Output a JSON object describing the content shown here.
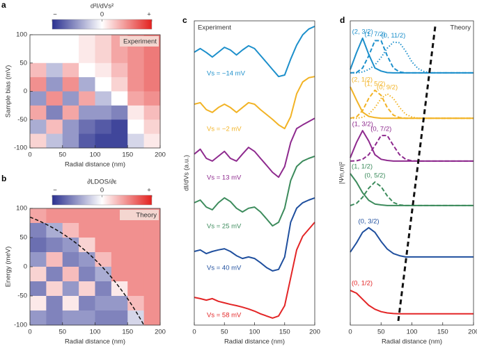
{
  "chart_data": [
    {
      "type": "heatmap",
      "panel": "a",
      "title": "d²I/dVs²",
      "annotation": "Experiment",
      "xlabel": "Radial distance (nm)",
      "ylabel": "Sample bias (mV)",
      "xlim": [
        0,
        200
      ],
      "ylim": [
        -100,
        100
      ],
      "xticks": [
        0,
        50,
        100,
        150,
        200
      ],
      "yticks": [
        -100,
        -50,
        0,
        50,
        100
      ],
      "colorscale": [
        "#2b3190",
        "#ffffff",
        "#e3211f"
      ],
      "zlim": [
        -1,
        1
      ],
      "zticks": [
        {
          "value": -1,
          "label": "−"
        },
        {
          "value": 0,
          "label": "0"
        },
        {
          "value": 1,
          "label": "+"
        }
      ],
      "x": [
        12.5,
        37.5,
        62.5,
        87.5,
        112.5,
        137.5,
        162.5,
        187.5
      ],
      "y": [
        87.5,
        62.5,
        37.5,
        12.5,
        -12.5,
        -37.5,
        -62.5,
        -87.5
      ],
      "z": [
        [
          0,
          0,
          0,
          0.1,
          0.2,
          0.4,
          0.5,
          0.6
        ],
        [
          0,
          0,
          0,
          0.1,
          0.2,
          0.4,
          0.5,
          0.6
        ],
        [
          0.3,
          -0.3,
          0.3,
          0,
          0.1,
          0.3,
          0.5,
          0.6
        ],
        [
          0.5,
          -0.5,
          0.5,
          -0.4,
          0,
          0.2,
          0.5,
          0.6
        ],
        [
          -0.5,
          0.5,
          -0.5,
          0.4,
          -0.3,
          0,
          0.4,
          0.5
        ],
        [
          0.4,
          -0.6,
          0.4,
          -0.5,
          -0.5,
          -0.6,
          0.1,
          0.3
        ],
        [
          -0.4,
          0.3,
          -0.5,
          -0.7,
          -0.8,
          -0.9,
          0,
          0.2
        ],
        [
          0.2,
          -0.3,
          -0.5,
          -0.8,
          -0.9,
          -0.9,
          -0.2,
          0.1
        ]
      ]
    },
    {
      "type": "heatmap",
      "panel": "b",
      "title": "∂LDOS/∂ε",
      "annotation": "Theory",
      "xlabel": "Radial distance (nm)",
      "ylabel": "Energy (meV)",
      "xlim": [
        0,
        200
      ],
      "ylim": [
        -100,
        100
      ],
      "xticks": [
        0,
        50,
        100,
        150,
        200
      ],
      "yticks": [
        -100,
        -50,
        0,
        50,
        100
      ],
      "colorscale": [
        "#2b3190",
        "#ffffff",
        "#e3211f"
      ],
      "zlim": [
        -1,
        1
      ],
      "zticks": [
        {
          "value": -1,
          "label": "−"
        },
        {
          "value": 0,
          "label": "0"
        },
        {
          "value": 1,
          "label": "+"
        }
      ],
      "x": [
        12.5,
        37.5,
        62.5,
        87.5,
        112.5,
        137.5,
        162.5,
        187.5
      ],
      "y": [
        87.5,
        62.5,
        37.5,
        12.5,
        -12.5,
        -37.5,
        -62.5,
        -87.5
      ],
      "z": [
        [
          0.4,
          0.5,
          0.5,
          0.5,
          0.5,
          0.5,
          0.5,
          0.5
        ],
        [
          -0.6,
          -0.4,
          0.3,
          0.5,
          0.5,
          0.5,
          0.5,
          0.5
        ],
        [
          -0.7,
          -0.6,
          -0.5,
          0.2,
          0.5,
          0.5,
          0.5,
          0.5
        ],
        [
          -0.5,
          0.3,
          -0.6,
          -0.5,
          0.3,
          0.5,
          0.5,
          0.5
        ],
        [
          0.2,
          -0.6,
          0.3,
          -0.6,
          -0.4,
          0.5,
          0.5,
          0.5
        ],
        [
          -0.6,
          0.2,
          -0.5,
          0.2,
          -0.6,
          0.1,
          0.5,
          0.5
        ],
        [
          0.1,
          -0.6,
          0.1,
          -0.6,
          -0.5,
          -0.5,
          0.3,
          0.5
        ],
        [
          -0.5,
          -0.6,
          -0.5,
          -0.5,
          -0.6,
          -0.6,
          -0.2,
          0.5
        ]
      ]
    },
    {
      "type": "line",
      "panel": "c",
      "annotation": "Experiment",
      "xlabel": "Radial distance (nm)",
      "ylabel": "dI/dVs (a.u.)",
      "xlim": [
        0,
        200
      ],
      "ylim": [
        0,
        100
      ],
      "xticks": [
        0,
        50,
        100,
        150,
        200
      ],
      "x": [
        0,
        10,
        20,
        30,
        40,
        50,
        60,
        70,
        80,
        90,
        100,
        110,
        120,
        130,
        140,
        150,
        160,
        170,
        180,
        190,
        200
      ],
      "series": [
        {
          "name": "Vs = −14 mV",
          "color": "#1c8fcb",
          "dash": "solid",
          "values": [
            89.7,
            90.9,
            89.6,
            88.1,
            89.7,
            91.3,
            90.4,
            88.8,
            90.4,
            91.8,
            90.9,
            88.6,
            86.3,
            84.0,
            81.7,
            82.2,
            87.4,
            92.0,
            95.4,
            97.3,
            98.2
          ]
        },
        {
          "name": "Vs = −2 mV",
          "color": "#f2b325",
          "dash": "solid",
          "values": [
            72.6,
            73.1,
            70.8,
            69.9,
            71.5,
            72.6,
            71.5,
            69.9,
            71.5,
            73.1,
            72.6,
            70.8,
            69.2,
            67.6,
            65.8,
            64.6,
            68.5,
            76.0,
            79.9,
            81.3,
            81.7
          ]
        },
        {
          "name": "Vs = 13 mV",
          "color": "#8e2a8e",
          "dash": "solid",
          "values": [
            56.2,
            57.8,
            54.8,
            53.9,
            55.5,
            57.1,
            54.8,
            53.9,
            56.2,
            58.4,
            57.1,
            54.8,
            52.5,
            50.2,
            48.6,
            52.1,
            60.0,
            64.6,
            65.8,
            66.9,
            68.0
          ]
        },
        {
          "name": "Vs = 25 mV",
          "color": "#3c8b5c",
          "dash": "solid",
          "values": [
            40.2,
            41.1,
            38.8,
            37.9,
            40.2,
            41.8,
            40.6,
            38.4,
            37.2,
            38.4,
            38.8,
            37.2,
            34.9,
            32.6,
            33.8,
            38.4,
            47.5,
            52.1,
            53.9,
            54.8,
            55.5
          ]
        },
        {
          "name": "Vs = 40 mV",
          "color": "#1f4f9e",
          "dash": "solid",
          "values": [
            24.2,
            24.7,
            23.5,
            24.2,
            24.7,
            25.1,
            24.2,
            22.8,
            21.9,
            22.4,
            21.9,
            20.5,
            18.9,
            17.8,
            18.3,
            22.4,
            33.8,
            38.4,
            40.2,
            41.1,
            41.8
          ]
        },
        {
          "name": "Vs = 58 mV",
          "color": "#e32526",
          "dash": "solid",
          "values": [
            9.1,
            8.7,
            8.2,
            8.7,
            7.8,
            7.3,
            6.8,
            6.4,
            5.9,
            5.3,
            4.6,
            3.7,
            3.0,
            2.3,
            3.0,
            6.4,
            15.5,
            24.7,
            29.2,
            31.5,
            33.8
          ]
        }
      ]
    },
    {
      "type": "line",
      "panel": "d",
      "annotation": "Theory",
      "xlabel": "Radial distance (nm)",
      "ylabel": "|Ψn,m|²",
      "xlim": [
        0,
        200
      ],
      "ylim": [
        0,
        100
      ],
      "xticks": [
        0,
        50,
        100,
        150,
        200
      ],
      "x": [
        0,
        10,
        20,
        30,
        40,
        50,
        60,
        70,
        80,
        90,
        100,
        110,
        120,
        130,
        140,
        150,
        160,
        170,
        180,
        190,
        200
      ],
      "series": [
        {
          "name": "(2, 3/2)",
          "color": "#1c8fcb",
          "dash": "solid",
          "values": [
            84.0,
            89.5,
            94.3,
            89.0,
            84.5,
            83.5,
            83.0,
            82.9,
            82.9,
            82.9,
            82.9,
            82.9,
            82.9,
            82.9,
            82.9,
            82.9,
            82.9,
            82.9,
            82.9,
            82.9,
            82.9
          ]
        },
        {
          "name": "(1, 7/2)",
          "color": "#1c8fcb",
          "dash": "dashed",
          "values": [
            82.9,
            83.0,
            84.5,
            88.5,
            93.5,
            93.5,
            88.5,
            84.5,
            83.2,
            82.9,
            82.9,
            82.9,
            82.9,
            82.9,
            82.9,
            82.9,
            82.9,
            82.9,
            82.9,
            82.9,
            82.9
          ]
        },
        {
          "name": "(0, 11/2)",
          "color": "#1c8fcb",
          "dash": "dotted",
          "values": [
            82.9,
            82.9,
            83.2,
            84.0,
            85.5,
            88.0,
            91.0,
            93.0,
            92.8,
            90.0,
            86.5,
            84.3,
            83.3,
            82.9,
            82.9,
            82.9,
            82.9,
            82.9,
            82.9,
            82.9,
            82.9
          ]
        },
        {
          "name": "(2, 1/2)",
          "color": "#f2b325",
          "dash": "solid",
          "values": [
            78.3,
            74.0,
            70.0,
            68.6,
            68.2,
            68.0,
            68.0,
            68.0,
            68.0,
            68.0,
            68.0,
            68.0,
            68.0,
            68.0,
            68.0,
            68.0,
            68.0,
            68.0,
            68.0,
            68.0,
            68.0
          ]
        },
        {
          "name": "(1, 5/2)",
          "color": "#f2b325",
          "dash": "dashed",
          "values": [
            68.0,
            68.4,
            70.5,
            74.5,
            77.2,
            75.5,
            71.5,
            69.0,
            68.2,
            68.0,
            68.0,
            68.0,
            68.0,
            68.0,
            68.0,
            68.0,
            68.0,
            68.0,
            68.0,
            68.0,
            68.0
          ]
        },
        {
          "name": "(0, 9/2)",
          "color": "#f2b325",
          "dash": "dotted",
          "values": [
            68.0,
            68.0,
            68.3,
            69.3,
            71.5,
            74.5,
            76.0,
            74.5,
            71.5,
            69.3,
            68.4,
            68.0,
            68.0,
            68.0,
            68.0,
            68.0,
            68.0,
            68.0,
            68.0,
            68.0,
            68.0
          ]
        },
        {
          "name": "(1, 3/2)",
          "color": "#8e2a8e",
          "dash": "solid",
          "values": [
            55.0,
            60.0,
            63.9,
            60.5,
            56.0,
            54.5,
            54.1,
            53.9,
            53.9,
            53.9,
            53.9,
            53.9,
            53.9,
            53.9,
            53.9,
            53.9,
            53.9,
            53.9,
            53.9,
            53.9,
            53.9
          ]
        },
        {
          "name": "(0, 7/2)",
          "color": "#8e2a8e",
          "dash": "dashed",
          "values": [
            53.9,
            54.0,
            54.5,
            56.0,
            59.0,
            62.3,
            62.3,
            59.0,
            56.0,
            54.5,
            54.0,
            53.9,
            53.9,
            53.9,
            53.9,
            53.9,
            53.9,
            53.9,
            53.9,
            53.9,
            53.9
          ]
        },
        {
          "name": "(1, 1/2)",
          "color": "#3c8b5c",
          "dash": "solid",
          "values": [
            49.8,
            47.0,
            43.5,
            41.0,
            39.8,
            39.5,
            39.3,
            39.3,
            39.3,
            39.3,
            39.3,
            39.3,
            39.3,
            39.3,
            39.3,
            39.3,
            39.3,
            39.3,
            39.3,
            39.3,
            39.3
          ]
        },
        {
          "name": "(0, 5/2)",
          "color": "#3c8b5c",
          "dash": "dashed",
          "values": [
            39.3,
            40.0,
            42.0,
            45.0,
            47.0,
            45.5,
            42.5,
            40.3,
            39.5,
            39.3,
            39.3,
            39.3,
            39.3,
            39.3,
            39.3,
            39.3,
            39.3,
            39.3,
            39.3,
            39.3,
            39.3
          ]
        },
        {
          "name": "(0, 3/2)",
          "color": "#1f4f9e",
          "dash": "solid",
          "values": [
            24.0,
            27.0,
            30.5,
            32.0,
            30.5,
            27.5,
            25.0,
            23.5,
            22.8,
            22.4,
            22.4,
            22.4,
            22.4,
            22.4,
            22.4,
            22.4,
            22.4,
            22.4,
            22.4,
            22.4,
            22.4
          ]
        },
        {
          "name": "(0, 1/2)",
          "color": "#e32526",
          "dash": "solid",
          "values": [
            11.4,
            10.5,
            8.5,
            6.5,
            5.2,
            4.4,
            4.0,
            3.8,
            3.7,
            3.7,
            3.7,
            3.7,
            3.7,
            3.7,
            3.7,
            3.7,
            3.7,
            3.7,
            3.7,
            3.7,
            3.7
          ]
        }
      ]
    }
  ]
}
